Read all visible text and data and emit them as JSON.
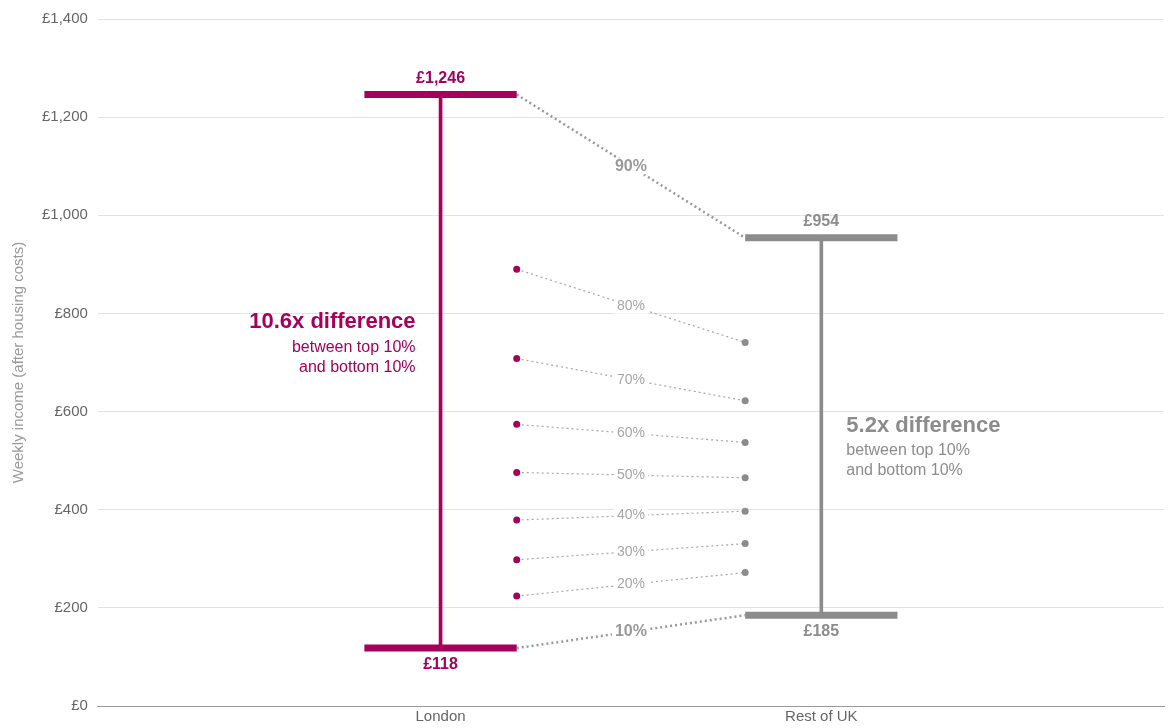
{
  "chart_data": {
    "type": "bar",
    "ylabel": "Weekly income (after housing costs)",
    "categories": [
      null,
      null,
      null,
      null,
      "London",
      null,
      null,
      null,
      null,
      "Rest of UK",
      null,
      null,
      null,
      null
    ],
    "series": [
      {
        "base": [
          null,
          null,
          null,
          null,
          118,
          null,
          null,
          null,
          null,
          185,
          null,
          null,
          null,
          null
        ],
        "values": [
          null,
          null,
          null,
          null,
          1128,
          null,
          null,
          null,
          null,
          769,
          null,
          null,
          null,
          null
        ],
        "colors": [
          null,
          null,
          null,
          null,
          "#a6005c",
          null,
          null,
          null,
          null,
          "#8c8c8c",
          null,
          null,
          null,
          null
        ]
      },
      {
        "type": "line",
        "values": [
          null,
          null,
          null,
          1246,
          1246,
          1246,
          null,
          null,
          null,
          null,
          null,
          null,
          null,
          null
        ],
        "color": "#a6005c"
      },
      {
        "type": "line",
        "values": [
          null,
          null,
          null,
          118,
          118,
          118,
          null,
          null,
          null,
          null,
          null,
          null,
          null,
          null
        ],
        "color": "#a6005c"
      },
      {
        "type": "line",
        "values": [
          null,
          null,
          null,
          null,
          null,
          null,
          null,
          null,
          954,
          954,
          954,
          null,
          null,
          null
        ],
        "color": "#8c8c8c"
      },
      {
        "type": "line",
        "values": [
          null,
          null,
          null,
          null,
          null,
          null,
          null,
          null,
          185,
          185,
          185,
          null,
          null,
          null
        ],
        "color": "#8c8c8c"
      },
      {
        "type": "line",
        "name": "10%",
        "values": [
          null,
          null,
          null,
          null,
          null,
          118,
          null,
          null,
          185,
          null,
          null,
          null,
          null,
          null
        ],
        "color": "#999999",
        "line_style": "dotted",
        "marker": "none"
      },
      {
        "type": "line",
        "name": "20%",
        "values": [
          null,
          null,
          null,
          null,
          null,
          224,
          null,
          null,
          272,
          null,
          null,
          null,
          null,
          null
        ],
        "color": "#a6a6a6",
        "line_style": "dotted",
        "marker": "circle",
        "colors": [
          null,
          null,
          null,
          null,
          null,
          "#a6005c",
          null,
          null,
          "#8c8c8c",
          null,
          null,
          null,
          null,
          null
        ]
      },
      {
        "type": "line",
        "name": "30%",
        "values": [
          null,
          null,
          null,
          null,
          null,
          298,
          null,
          null,
          331,
          null,
          null,
          null,
          null,
          null
        ],
        "color": "#a6a6a6",
        "line_style": "dotted",
        "marker": "circle",
        "colors": [
          null,
          null,
          null,
          null,
          null,
          "#a6005c",
          null,
          null,
          "#8c8c8c",
          null,
          null,
          null,
          null,
          null
        ]
      },
      {
        "type": "line",
        "name": "40%",
        "values": [
          null,
          null,
          null,
          null,
          null,
          379,
          null,
          null,
          397,
          null,
          null,
          null,
          null,
          null
        ],
        "color": "#a6a6a6",
        "line_style": "dotted",
        "marker": "circle",
        "colors": [
          null,
          null,
          null,
          null,
          null,
          "#a6005c",
          null,
          null,
          "#8c8c8c",
          null,
          null,
          null,
          null,
          null
        ]
      },
      {
        "type": "line",
        "name": "50%",
        "values": [
          null,
          null,
          null,
          null,
          null,
          476,
          null,
          null,
          465,
          null,
          null,
          null,
          null,
          null
        ],
        "color": "#a6a6a6",
        "line_style": "dotted",
        "marker": "circle",
        "colors": [
          null,
          null,
          null,
          null,
          null,
          "#a6005c",
          null,
          null,
          "#8c8c8c",
          null,
          null,
          null,
          null,
          null
        ]
      },
      {
        "type": "line",
        "name": "60%",
        "values": [
          null,
          null,
          null,
          null,
          null,
          574,
          null,
          null,
          537,
          null,
          null,
          null,
          null,
          null
        ],
        "color": "#a6a6a6",
        "line_style": "dotted",
        "marker": "circle",
        "colors": [
          null,
          null,
          null,
          null,
          null,
          "#a6005c",
          null,
          null,
          "#8c8c8c",
          null,
          null,
          null,
          null,
          null
        ]
      },
      {
        "type": "line",
        "name": "70%",
        "values": [
          null,
          null,
          null,
          null,
          null,
          708,
          null,
          null,
          622,
          null,
          null,
          null,
          null,
          null
        ],
        "color": "#a6a6a6",
        "line_style": "dotted",
        "marker": "circle",
        "colors": [
          null,
          null,
          null,
          null,
          null,
          "#a6005c",
          null,
          null,
          "#8c8c8c",
          null,
          null,
          null,
          null,
          null
        ]
      },
      {
        "type": "line",
        "name": "80%",
        "values": [
          null,
          null,
          null,
          null,
          null,
          890,
          null,
          null,
          741,
          null,
          null,
          null,
          null,
          null
        ],
        "color": "#a6a6a6",
        "line_style": "dotted",
        "marker": "circle",
        "colors": [
          null,
          null,
          null,
          null,
          null,
          "#a6005c",
          null,
          null,
          "#8c8c8c",
          null,
          null,
          null,
          null,
          null
        ]
      },
      {
        "type": "line",
        "name": "90%",
        "values": [
          null,
          null,
          null,
          null,
          null,
          1246,
          null,
          null,
          954,
          null,
          null,
          null,
          null,
          null
        ],
        "color": "#999999",
        "line_style": "dotted",
        "marker": "none"
      }
    ],
    "annotations": [
      {
        "text": "£1,246",
        "x": "London",
        "y": 1246
      },
      {
        "text": "£118",
        "x": "London",
        "y": 118
      },
      {
        "text": "£954",
        "x": "Rest of UK",
        "y": 954
      },
      {
        "text": "£185",
        "x": "Rest of UK",
        "y": 185
      },
      "10.6x difference\nbetween top 10%\nand bottom 10%",
      "5.2x difference\nbetween top 10%\nand bottom 10%"
    ],
    "ylim": [
      0,
      1400
    ],
    "yticks": [
      {
        "value": 0,
        "label": "£0"
      },
      {
        "value": 200,
        "label": "£200"
      },
      {
        "value": 400,
        "label": "£400"
      },
      {
        "value": 600,
        "label": "£600"
      },
      {
        "value": 800,
        "label": "£800"
      },
      {
        "value": 1000,
        "label": "£1,000"
      },
      {
        "value": 1200,
        "label": "£1,200"
      },
      {
        "value": 1400,
        "label": "£1,400"
      }
    ],
    "grid": "y",
    "legend": false
  }
}
